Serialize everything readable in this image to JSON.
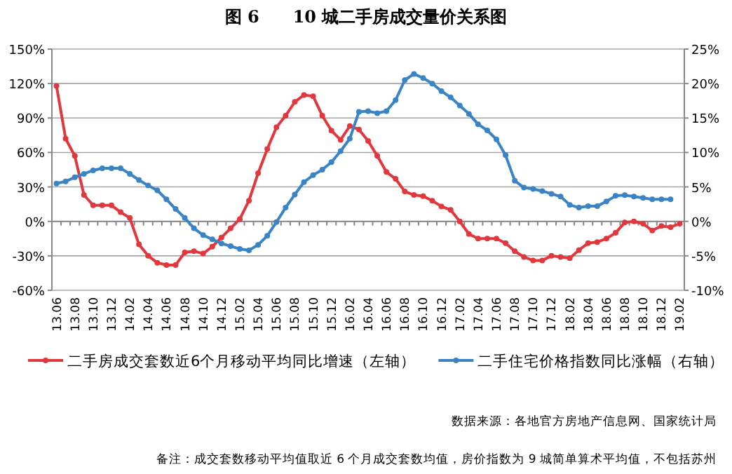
{
  "chart_data": {
    "type": "line",
    "title": "图 6　　10 城二手房成交量价关系图",
    "categories": [
      "13.06",
      null,
      "13.08",
      null,
      "13.10",
      null,
      "13.12",
      null,
      "14.02",
      null,
      "14.04",
      null,
      "14.06",
      null,
      "14.08",
      null,
      "14.10",
      null,
      "14.12",
      null,
      "15.02",
      null,
      "15.04",
      null,
      "15.06",
      null,
      "15.08",
      null,
      "15.10",
      null,
      "15.12",
      null,
      "16.02",
      null,
      "16.04",
      null,
      "16.06",
      null,
      "16.08",
      null,
      "16.10",
      null,
      "16.12",
      null,
      "17.02",
      null,
      "17.04",
      null,
      "17.06",
      null,
      "17.08",
      null,
      "17.10",
      null,
      "17.12",
      null,
      "18.02",
      null,
      "18.04",
      null,
      "18.06",
      null,
      "18.08",
      null,
      "18.10",
      null,
      "18.12",
      null,
      "19.02"
    ],
    "series": [
      {
        "name": "二手房成交套数近6个月移动平均同比增速（左轴）",
        "color": "#e0383c",
        "axis": "y",
        "values": [
          118,
          72,
          57,
          23,
          14,
          14,
          14,
          8,
          3,
          -20,
          -30,
          -36,
          -38,
          -38,
          -27,
          -26,
          -28,
          -22,
          -14,
          -6,
          2,
          18,
          42,
          63,
          82,
          92,
          104,
          110,
          109,
          92,
          79,
          71,
          83,
          80,
          70,
          57,
          43,
          37,
          26,
          23,
          22,
          18,
          13,
          10,
          0,
          -11,
          -15,
          -15,
          -15,
          -19,
          -26,
          -31,
          -34,
          -34,
          -30,
          -31,
          -32,
          -25,
          -19,
          -18,
          -15,
          -10,
          -1,
          0,
          -2,
          -8,
          -4,
          -5,
          -2
        ]
      },
      {
        "name": "二手住宅价格指数同比涨幅（右轴）",
        "color": "#3a84c6",
        "axis": "y2",
        "values": [
          5.5,
          5.8,
          6.4,
          6.9,
          7.4,
          7.7,
          7.7,
          7.7,
          6.9,
          6.0,
          5.2,
          4.5,
          3.2,
          1.8,
          0.5,
          -1.0,
          -2.0,
          -2.6,
          -3.2,
          -3.6,
          -4.0,
          -4.2,
          -3.4,
          -2.1,
          -0.1,
          2.0,
          3.9,
          5.7,
          6.7,
          7.5,
          8.6,
          10.2,
          12.0,
          15.9,
          16.0,
          15.7,
          16.0,
          17.6,
          20.5,
          21.4,
          20.8,
          20.0,
          18.9,
          18.0,
          16.8,
          15.6,
          14.1,
          13.2,
          11.9,
          9.6,
          5.9,
          4.9,
          4.7,
          4.4,
          4.0,
          3.6,
          2.4,
          2.0,
          2.2,
          2.2,
          2.9,
          3.7,
          3.8,
          3.6,
          3.4,
          3.2,
          3.2,
          3.2,
          null
        ]
      }
    ],
    "ylim": [
      -60,
      150
    ],
    "yticks": [
      {
        "value": -60,
        "label": "-60%"
      },
      {
        "value": -30,
        "label": "-30%"
      },
      {
        "value": 0,
        "label": "0%"
      },
      {
        "value": 30,
        "label": "30%"
      },
      {
        "value": 60,
        "label": "60%"
      },
      {
        "value": 90,
        "label": "90%"
      },
      {
        "value": 120,
        "label": "120%"
      },
      {
        "value": 150,
        "label": "150%"
      }
    ],
    "y2lim": [
      -10,
      25
    ],
    "y2ticks": [
      {
        "value": -10,
        "label": "-10%"
      },
      {
        "value": -5,
        "label": "-5%"
      },
      {
        "value": 0,
        "label": "0%"
      },
      {
        "value": 5,
        "label": "5%"
      },
      {
        "value": 10,
        "label": "10%"
      },
      {
        "value": 15,
        "label": "15%"
      },
      {
        "value": 20,
        "label": "20%"
      },
      {
        "value": 25,
        "label": "25%"
      }
    ],
    "grid": "y",
    "legend": "bottom",
    "marker": "circle",
    "line_style": "solid",
    "annotations": [
      "数据来源：各地官方房地产信息网、国家统计局",
      "备注：成交套数移动平均值取近 6 个月成交套数均值，房价指数为 9 城简单算术平均值，不包括苏州"
    ]
  }
}
